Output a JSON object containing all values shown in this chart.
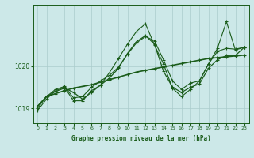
{
  "bg_color": "#cce8e8",
  "grid_color": "#aacccc",
  "line_color": "#1a5c1a",
  "title": "Graphe pression niveau de la mer (hPa)",
  "xlim": [
    -0.5,
    23.5
  ],
  "ylim": [
    1018.65,
    1021.45
  ],
  "yticks": [
    1019,
    1020
  ],
  "xticks": [
    0,
    1,
    2,
    3,
    4,
    5,
    6,
    7,
    8,
    9,
    10,
    11,
    12,
    13,
    14,
    15,
    16,
    17,
    18,
    19,
    20,
    21,
    22,
    23
  ],
  "series1_x": [
    0,
    1,
    2,
    3,
    4,
    5,
    6,
    7,
    8,
    9,
    10,
    11,
    12,
    13,
    14,
    15,
    16,
    17,
    18,
    19,
    20,
    21,
    22,
    23
  ],
  "series1_y": [
    1019.05,
    1019.28,
    1019.35,
    1019.42,
    1019.48,
    1019.52,
    1019.56,
    1019.62,
    1019.68,
    1019.74,
    1019.8,
    1019.86,
    1019.9,
    1019.94,
    1019.98,
    1020.02,
    1020.06,
    1020.1,
    1020.14,
    1020.18,
    1020.2,
    1020.22,
    1020.24,
    1020.26
  ],
  "series2_x": [
    0,
    1,
    2,
    3,
    4,
    5,
    6,
    7,
    8,
    9,
    10,
    11,
    12,
    13,
    14,
    15,
    16,
    17,
    18,
    19,
    20,
    21,
    22,
    23
  ],
  "series2_y": [
    1019.05,
    1019.28,
    1019.4,
    1019.48,
    1019.38,
    1019.22,
    1019.38,
    1019.55,
    1019.72,
    1019.95,
    1020.3,
    1020.58,
    1020.72,
    1020.52,
    1019.88,
    1019.5,
    1019.38,
    1019.5,
    1019.58,
    1019.95,
    1020.15,
    1020.25,
    1020.25,
    1020.45
  ],
  "series3_x": [
    0,
    1,
    2,
    3,
    4,
    5,
    6,
    7,
    8,
    9,
    10,
    11,
    12,
    13,
    14,
    15,
    16,
    17,
    18,
    19,
    20,
    21,
    22,
    23
  ],
  "series3_y": [
    1019.0,
    1019.28,
    1019.45,
    1019.52,
    1019.25,
    1019.28,
    1019.5,
    1019.65,
    1019.78,
    1019.98,
    1020.28,
    1020.55,
    1020.7,
    1020.6,
    1020.15,
    1019.65,
    1019.45,
    1019.6,
    1019.65,
    1020.05,
    1020.35,
    1020.42,
    1020.4,
    1020.45
  ],
  "series4_x": [
    0,
    1,
    2,
    3,
    4,
    5,
    6,
    7,
    8,
    9,
    10,
    11,
    12,
    13,
    14,
    15,
    16,
    17,
    18,
    19,
    20,
    21,
    22,
    23
  ],
  "series4_y": [
    1018.95,
    1019.22,
    1019.42,
    1019.5,
    1019.18,
    1019.18,
    1019.42,
    1019.55,
    1019.85,
    1020.18,
    1020.52,
    1020.82,
    1021.0,
    1020.5,
    1020.05,
    1019.48,
    1019.28,
    1019.45,
    1019.65,
    1020.05,
    1020.42,
    1021.05,
    1020.38,
    1020.45
  ]
}
